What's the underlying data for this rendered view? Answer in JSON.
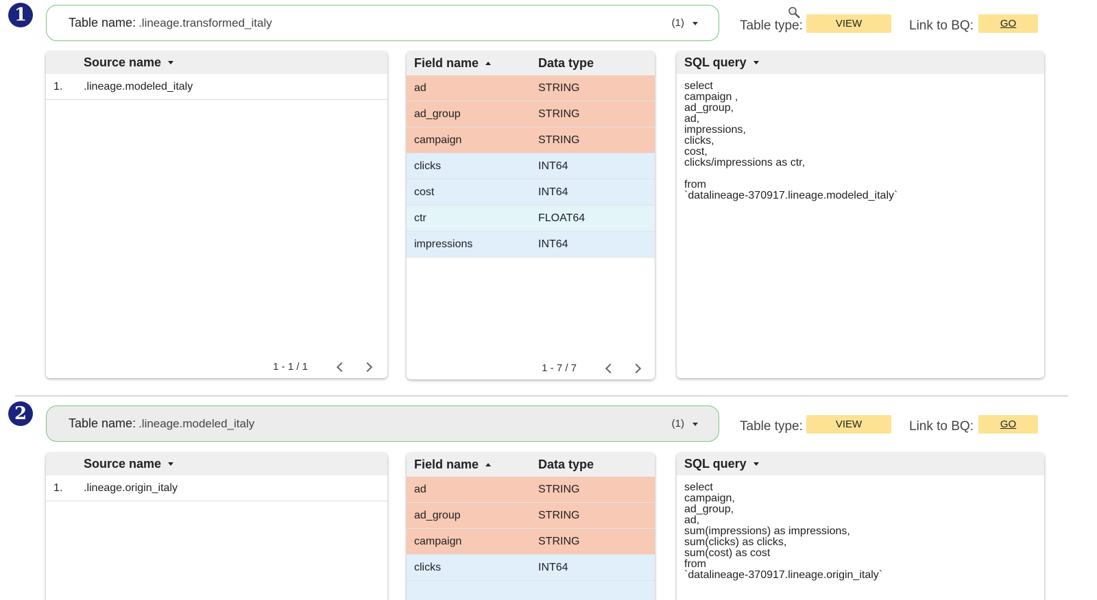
{
  "sections": [
    {
      "badge": "1",
      "table_name_label": "Table name",
      "table_name_value": ".lineage.transformed_italy",
      "count": "(1)",
      "type_label": "Table type:",
      "type_value": "VIEW",
      "bq_label": "Link to BQ:",
      "bq_value": "GO",
      "source_header": "Source name",
      "sources": [
        {
          "idx": "1.",
          "name": ".lineage.modeled_italy"
        }
      ],
      "source_pager": "1 - 1 / 1",
      "field_header": "Field name",
      "type_header": "Data type",
      "fields": [
        {
          "name": "ad",
          "type": "STRING",
          "kind": "str"
        },
        {
          "name": "ad_group",
          "type": "STRING",
          "kind": "str"
        },
        {
          "name": "campaign",
          "type": "STRING",
          "kind": "str"
        },
        {
          "name": "clicks",
          "type": "INT64",
          "kind": "int"
        },
        {
          "name": "cost",
          "type": "INT64",
          "kind": "int"
        },
        {
          "name": "ctr",
          "type": "FLOAT64",
          "kind": "flt"
        },
        {
          "name": "impressions",
          "type": "INT64",
          "kind": "int"
        }
      ],
      "field_pager": "1 - 7 / 7",
      "sql_header": "SQL query",
      "sql": [
        "select",
        "campaign ,",
        "ad_group,",
        "ad,",
        "impressions,",
        "clicks,",
        "cost,",
        "clicks/impressions as ctr,",
        "",
        "from",
        "`datalineage-370917.lineage.modeled_italy`"
      ]
    },
    {
      "badge": "2",
      "table_name_label": "Table name",
      "table_name_value": ".lineage.modeled_italy",
      "count": "(1)",
      "type_label": "Table type:",
      "type_value": "VIEW",
      "bq_label": "Link to BQ:",
      "bq_value": "GO",
      "source_header": "Source name",
      "sources": [
        {
          "idx": "1.",
          "name": ".lineage.origin_italy"
        }
      ],
      "field_header": "Field name",
      "type_header": "Data type",
      "fields": [
        {
          "name": "ad",
          "type": "STRING",
          "kind": "str"
        },
        {
          "name": "ad_group",
          "type": "STRING",
          "kind": "str"
        },
        {
          "name": "campaign",
          "type": "STRING",
          "kind": "str"
        },
        {
          "name": "clicks",
          "type": "INT64",
          "kind": "int"
        }
      ],
      "sql_header": "SQL query",
      "sql": [
        "select",
        "campaign,",
        "ad_group,",
        "ad,",
        "sum(impressions) as impressions,",
        "sum(clicks) as clicks,",
        "sum(cost) as cost",
        "from",
        "`datalineage-370917.lineage.origin_italy`"
      ]
    }
  ]
}
